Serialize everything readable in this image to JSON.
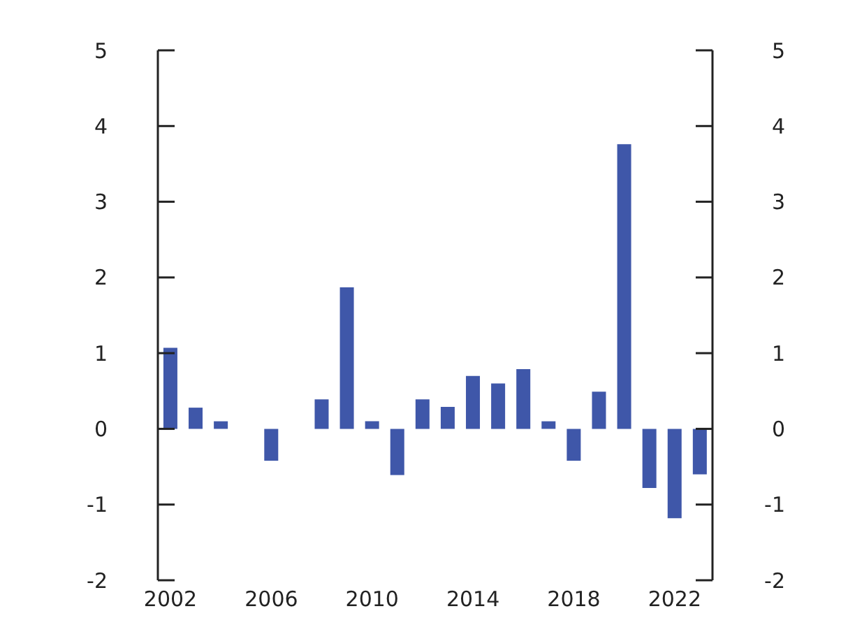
{
  "chart_data": {
    "type": "bar",
    "categories": [
      "2002",
      null,
      null,
      null,
      "2006",
      null,
      null,
      null,
      "2010",
      null,
      null,
      null,
      "2014",
      null,
      null,
      null,
      "2018",
      null,
      null,
      null,
      "2022",
      null
    ],
    "values": [
      1.07,
      0.28,
      0.1,
      null,
      -0.42,
      null,
      0.39,
      1.87,
      0.1,
      -0.61,
      0.39,
      0.29,
      0.7,
      0.6,
      0.79,
      0.1,
      -0.42,
      0.49,
      3.76,
      -0.78,
      -1.18,
      -0.6
    ],
    "color": "#3f57a9",
    "ylim": [
      -2,
      5
    ],
    "yticks": [
      -2,
      -1,
      0,
      1,
      2,
      3,
      4,
      5
    ],
    "y2lim": [
      -2,
      5
    ],
    "y2ticks": [
      -2,
      -1,
      0,
      1,
      2,
      3,
      4,
      5
    ]
  }
}
